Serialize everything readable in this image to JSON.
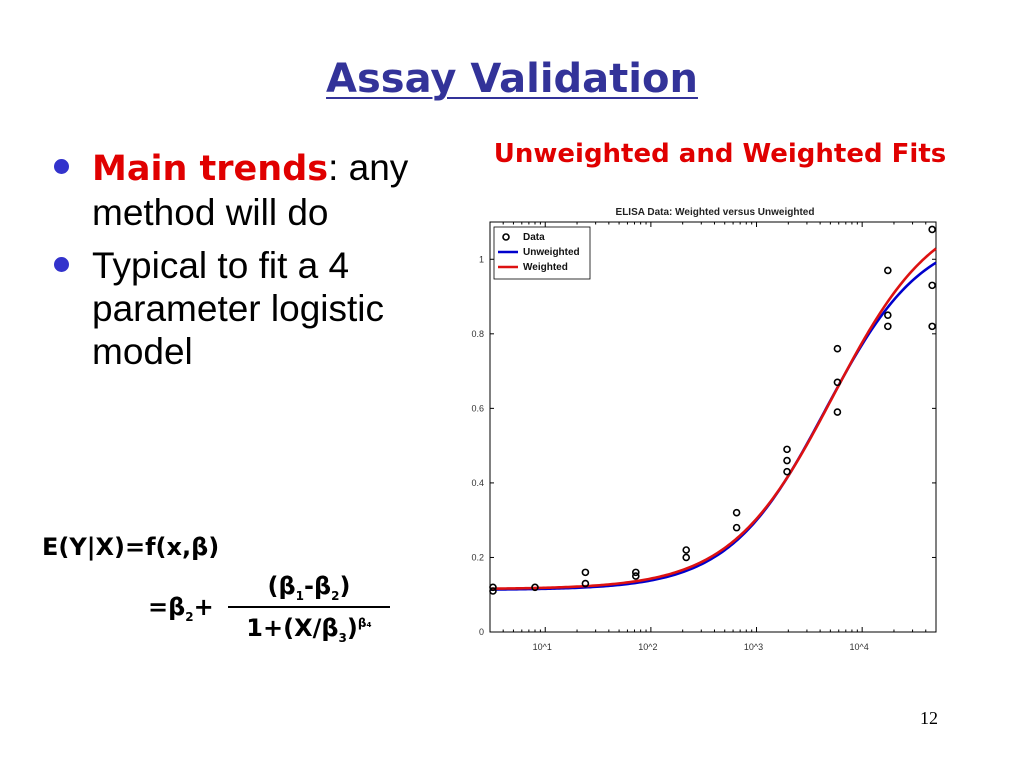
{
  "slide": {
    "title": "Assay Validation",
    "page_number": "12"
  },
  "bullets": [
    {
      "highlight": "Main trends",
      "rest": ": any method will do"
    },
    {
      "highlight": "",
      "rest": "Typical to fit a 4 parameter logistic model"
    }
  ],
  "formula": {
    "line1": "E(Y|X)=f(x,β)",
    "lhs": "=β",
    "lhs_sub": "2",
    "lhs_plus": "+",
    "num_open": "(β",
    "num_sub1": "1",
    "num_minus": "-β",
    "num_sub2": "2",
    "num_close": ")",
    "den_pre": "1+",
    "den_x": "(X/β",
    "den_sub": "3",
    "den_close": ")",
    "den_sup": "β₄"
  },
  "chart_heading": "Unweighted and Weighted Fits",
  "chart_data": {
    "type": "scatter",
    "title": "ELISA Data: Weighted versus Unweighted",
    "xscale": "log",
    "xlim": [
      3,
      50000
    ],
    "ylim": [
      0,
      1.1
    ],
    "yticks": [
      0,
      0.2,
      0.4,
      0.6,
      0.8,
      1
    ],
    "ytick_labels": [
      "0",
      "0.2",
      "0.4",
      "0.6",
      "0.8",
      "1"
    ],
    "xticks": [
      10,
      100,
      1000,
      10000
    ],
    "xtick_labels": [
      "10^1",
      "10^2",
      "10^3",
      "10^4"
    ],
    "grid": false,
    "legend": "top-left",
    "series": [
      {
        "name": "Data",
        "kind": "points",
        "color": "#000000",
        "x": [
          3.2,
          3.2,
          8,
          24,
          24,
          72,
          72,
          216,
          216,
          648,
          648,
          1944,
          1944,
          1944,
          5832,
          5832,
          5832,
          17496,
          17496,
          17496,
          46000,
          46000,
          46000
        ],
        "y": [
          0.12,
          0.11,
          0.12,
          0.13,
          0.16,
          0.16,
          0.15,
          0.22,
          0.2,
          0.32,
          0.28,
          0.49,
          0.46,
          0.43,
          0.76,
          0.67,
          0.59,
          0.97,
          0.85,
          0.82,
          1.08,
          0.93,
          0.82
        ]
      },
      {
        "name": "Unweighted",
        "kind": "curve",
        "color": "#0000cc",
        "params": {
          "b1": 1.08,
          "b2": 0.113,
          "b3": 4500,
          "b4": 0.95
        }
      },
      {
        "name": "Weighted",
        "kind": "curve",
        "color": "#dd1111",
        "params": {
          "b1": 1.15,
          "b2": 0.115,
          "b3": 5300,
          "b4": 0.9
        }
      }
    ]
  }
}
